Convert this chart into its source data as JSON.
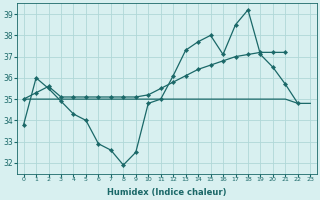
{
  "xlabel": "Humidex (Indice chaleur)",
  "background_color": "#d8f0f0",
  "grid_color": "#b0d8d8",
  "line_color": "#1a6868",
  "ylim": [
    31.5,
    39.5
  ],
  "yticks": [
    32,
    33,
    34,
    35,
    36,
    37,
    38,
    39
  ],
  "xlim": [
    -0.5,
    23.5
  ],
  "y_series1": [
    33.8,
    36.0,
    35.5,
    34.9,
    34.3,
    34.0,
    32.9,
    32.6,
    31.9,
    32.5,
    34.8,
    35.0,
    36.1,
    37.3,
    37.7,
    38.0,
    37.1,
    38.5,
    39.2,
    37.1,
    36.5,
    35.7,
    34.8,
    null
  ],
  "y_series2": [
    35.0,
    35.3,
    35.6,
    35.1,
    35.1,
    35.1,
    35.1,
    35.1,
    35.1,
    35.1,
    35.2,
    35.5,
    35.8,
    36.1,
    36.4,
    36.6,
    36.8,
    37.0,
    37.1,
    37.2,
    37.2,
    37.2,
    null,
    null
  ],
  "y_series3": [
    null,
    null,
    null,
    null,
    null,
    null,
    null,
    null,
    null,
    null,
    null,
    null,
    null,
    null,
    null,
    null,
    null,
    null,
    null,
    null,
    null,
    null,
    34.8,
    34.8
  ],
  "y_flat": [
    35.0,
    35.0,
    35.0,
    35.0,
    35.0,
    35.0,
    35.0,
    35.0,
    35.0,
    35.0,
    35.0,
    35.0,
    35.0,
    35.0,
    35.0,
    35.0,
    35.0,
    35.0,
    35.0,
    35.0,
    35.0,
    35.0,
    34.8,
    34.8
  ]
}
